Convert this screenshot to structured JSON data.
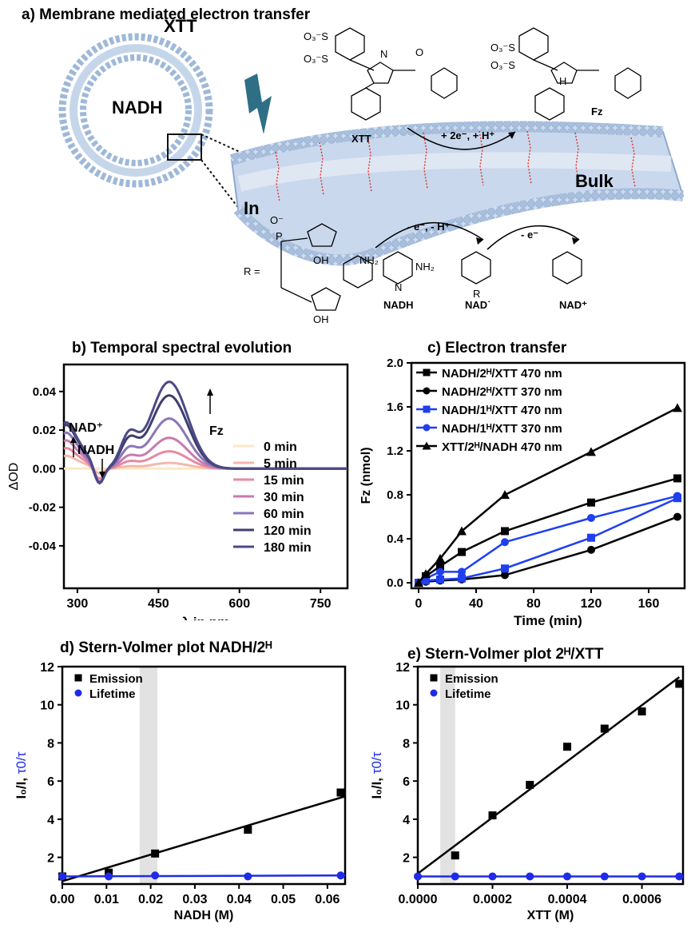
{
  "panel_a": {
    "title": "a) Membrane mediated electron transfer",
    "labels": {
      "xtt_vesicle": "XTT",
      "nadh_vesicle": "NADH",
      "in": "In",
      "bulk": "Bulk",
      "xtt_mol": "XTT",
      "fz_mol": "Fz",
      "reaction_top": "+ 2e⁻, + H⁺",
      "reaction_mid": "- e⁻, - H⁺",
      "reaction_right": "- e⁻",
      "nadh_mol": "NADH",
      "nad_radical": "NAD˙",
      "nad_plus": "NAD⁺",
      "r_eq": "R =",
      "conh2": "NH₂",
      "nh2": "NH₂",
      "so3_a": "O₃⁻S",
      "so3_b": "O₃⁻S",
      "so3_c": "O₃⁻S",
      "so3_d": "O₃⁻S",
      "nh_a": "N",
      "nh_b": "H",
      "o_a": "O",
      "oh_a": "OH",
      "oh_b": "OH",
      "o_minus": "O⁻",
      "p_label": "P",
      "n_r": "N",
      "r_sub": "R"
    },
    "colors": {
      "membrane": "#9fb8d8",
      "lightning": "#2e6f86",
      "lipid_tail": "#e0322b"
    },
    "icons": [
      "lightning-icon",
      "vesicle-icon",
      "membrane-icon"
    ]
  },
  "panel_b": {
    "title": "b) Temporal spectral evolution",
    "annotations": {
      "nad_plus": "NAD⁺",
      "nadh": "NADH",
      "fz": "Fz"
    },
    "chart_data": {
      "type": "line",
      "xlabel": "λ in nm",
      "ylabel": "ΔOD",
      "xlim": [
        275,
        800
      ],
      "ylim": [
        -0.062,
        0.054
      ],
      "xticks": [
        300,
        450,
        600,
        750
      ],
      "yticks": [
        -0.04,
        -0.02,
        0.0,
        0.02,
        0.04
      ],
      "ytick_labels": [
        "-0.04",
        "-0.02",
        "0.00",
        "0.02",
        "0.04"
      ],
      "legend_position": "center-right",
      "series": [
        {
          "name": "0 min",
          "color": "#fde8c4",
          "peak": 0.0,
          "uv": 0.0,
          "dip": 0.0
        },
        {
          "name": "5 min",
          "color": "#f2b8ad",
          "peak": 0.003,
          "uv": 0.005,
          "dip": -0.003
        },
        {
          "name": "15 min",
          "color": "#e48ba2",
          "peak": 0.009,
          "uv": 0.008,
          "dip": -0.006
        },
        {
          "name": "30 min",
          "color": "#c77ab0",
          "peak": 0.016,
          "uv": 0.011,
          "dip": -0.008
        },
        {
          "name": "60 min",
          "color": "#8a76b8",
          "peak": 0.026,
          "uv": 0.014,
          "dip": -0.009
        },
        {
          "name": "120 min",
          "color": "#3e3d6e",
          "peak": 0.038,
          "uv": 0.017,
          "dip": -0.009
        },
        {
          "name": "180 min",
          "color": "#4b4a84",
          "peak": 0.045,
          "uv": 0.018,
          "dip": -0.009
        }
      ]
    }
  },
  "panel_c": {
    "title": "c) Electron transfer",
    "chart_data": {
      "type": "line",
      "xlabel": "Time (min)",
      "ylabel": "Fz (nmol)",
      "xlim": [
        -5,
        185
      ],
      "ylim": [
        -0.05,
        2.0
      ],
      "xticks": [
        0,
        40,
        80,
        120,
        160
      ],
      "yticks": [
        0.0,
        0.4,
        0.8,
        1.2,
        1.6,
        2.0
      ],
      "ytick_labels": [
        "0.0",
        "0.4",
        "0.8",
        "1.2",
        "1.6",
        "2.0"
      ],
      "legend_position": "top-left",
      "series": [
        {
          "name": "NADH/2ᴴ/XTT 470 nm",
          "color": "#000000",
          "marker": "square",
          "x": [
            0,
            5,
            15,
            30,
            60,
            120,
            180
          ],
          "y": [
            0.0,
            0.06,
            0.15,
            0.28,
            0.47,
            0.73,
            0.95
          ]
        },
        {
          "name": "NADH/2ᴴ/XTT 370 nm",
          "color": "#000000",
          "marker": "circle",
          "x": [
            0,
            5,
            15,
            30,
            60,
            120,
            180
          ],
          "y": [
            0.0,
            0.01,
            0.02,
            0.03,
            0.07,
            0.3,
            0.6
          ]
        },
        {
          "name": "NADH/1ᴴ/XTT 470 nm",
          "color": "#1f3ff0",
          "marker": "square",
          "x": [
            0,
            5,
            15,
            30,
            60,
            120,
            180
          ],
          "y": [
            0.0,
            0.02,
            0.03,
            0.04,
            0.13,
            0.41,
            0.77
          ]
        },
        {
          "name": "NADH/1ᴴ/XTT 370 nm",
          "color": "#1f3ff0",
          "marker": "circle",
          "x": [
            0,
            5,
            15,
            30,
            60,
            120,
            180
          ],
          "y": [
            0.0,
            0.04,
            0.1,
            0.1,
            0.37,
            0.59,
            0.79
          ]
        },
        {
          "name": "XTT/2ᴴ/NADH 470 nm",
          "color": "#000000",
          "marker": "triangle",
          "x": [
            0,
            5,
            15,
            30,
            60,
            120,
            180
          ],
          "y": [
            0.0,
            0.08,
            0.22,
            0.47,
            0.8,
            1.19,
            1.59
          ]
        }
      ]
    }
  },
  "panel_d": {
    "title": "d) Stern-Volmer plot NADH/2ᴴ",
    "ylabel_black": "I₀/I, ",
    "ylabel_blue": "τ0/τ",
    "chart_data": {
      "type": "scatter",
      "xlabel": "NADH (M)",
      "xlim": [
        0.0,
        0.064
      ],
      "ylim": [
        0.6,
        12.0
      ],
      "xticks": [
        0.0,
        0.01,
        0.02,
        0.03,
        0.04,
        0.05,
        0.06
      ],
      "xtick_labels": [
        "0.00",
        "0.01",
        "0.02",
        "0.03",
        "0.04",
        "0.05",
        "0.06"
      ],
      "yticks": [
        2,
        4,
        6,
        8,
        10,
        12
      ],
      "highlight_band": [
        0.0175,
        0.0215
      ],
      "legend_position": "top-left",
      "series": [
        {
          "name": "Emission",
          "color": "#000000",
          "marker": "square",
          "x": [
            0.0,
            0.0105,
            0.021,
            0.042,
            0.063
          ],
          "y": [
            1.0,
            1.2,
            2.2,
            3.45,
            5.4
          ],
          "fit": [
            [
              0.0,
              0.75
            ],
            [
              0.064,
              5.2
            ]
          ]
        },
        {
          "name": "Lifetime",
          "color": "#1f2be8",
          "marker": "circle",
          "x": [
            0.0,
            0.0105,
            0.021,
            0.042,
            0.063
          ],
          "y": [
            1.0,
            1.0,
            1.05,
            1.0,
            1.05
          ],
          "fit": [
            [
              0.0,
              1.0
            ],
            [
              0.064,
              1.05
            ]
          ]
        }
      ]
    }
  },
  "panel_e": {
    "title": "e) Stern-Volmer plot 2ᴴ/XTT",
    "ylabel_black": "I₀/I, ",
    "ylabel_blue": "τ0/τ",
    "chart_data": {
      "type": "scatter",
      "xlabel": "XTT (M)",
      "xlim": [
        0.0,
        0.00071
      ],
      "ylim": [
        0.6,
        12.0
      ],
      "xticks": [
        0.0,
        0.0002,
        0.0004,
        0.0006
      ],
      "xtick_labels": [
        "0.0000",
        "0.0002",
        "0.0004",
        "0.0006"
      ],
      "yticks": [
        2,
        4,
        6,
        8,
        10,
        12
      ],
      "highlight_band": [
        6e-05,
        0.0001
      ],
      "legend_position": "top-left",
      "series": [
        {
          "name": "Emission",
          "color": "#000000",
          "marker": "square",
          "x": [
            0.0001,
            0.0002,
            0.0003,
            0.0004,
            0.0005,
            0.0006,
            0.0007
          ],
          "y": [
            2.1,
            4.2,
            5.8,
            7.8,
            8.75,
            9.65,
            11.1
          ],
          "fit": [
            [
              0.0,
              1.15
            ],
            [
              0.0007,
              11.45
            ]
          ]
        },
        {
          "name": "Lifetime",
          "color": "#1f2be8",
          "marker": "circle",
          "x": [
            0.0,
            0.0001,
            0.0002,
            0.0003,
            0.0004,
            0.0005,
            0.0006,
            0.0007
          ],
          "y": [
            1.0,
            1.0,
            1.0,
            1.0,
            1.0,
            1.0,
            1.0,
            1.0
          ],
          "fit": [
            [
              0.0,
              1.0
            ],
            [
              0.0007,
              1.0
            ]
          ]
        }
      ]
    }
  }
}
